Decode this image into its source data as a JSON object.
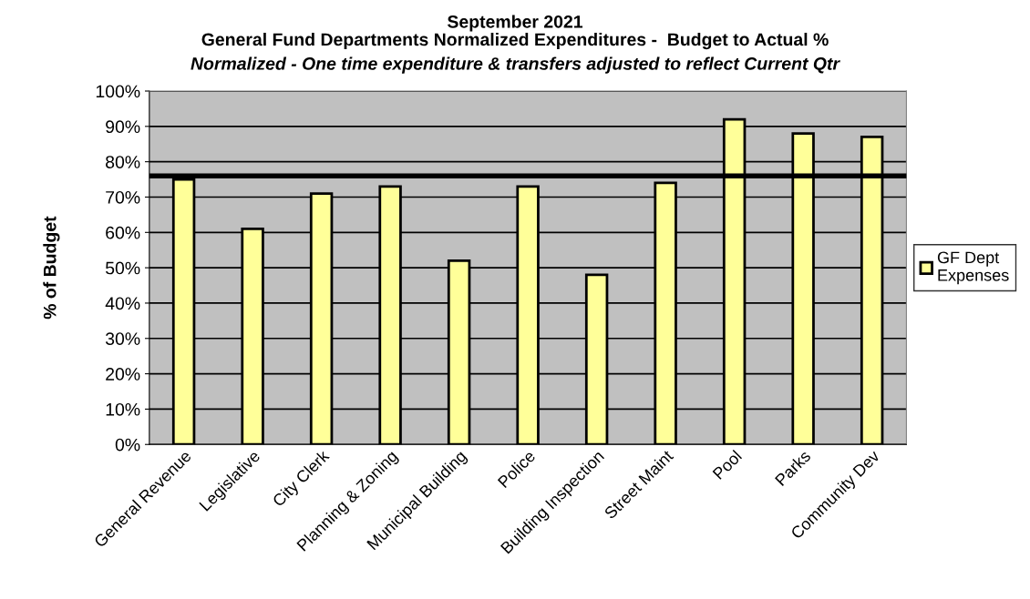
{
  "chart_data": {
    "type": "bar",
    "title": "September 2021\nGeneral Fund Departments Normalized Expenditures -  Budget to Actual %",
    "subtitle": "Normalized - One time expenditure & transfers adjusted to reflect Current Qtr",
    "ylabel": "% of Budget",
    "categories": [
      "General Revenue",
      "Legislative",
      "City Clerk",
      "Planning & Zoning",
      "Municipal Building",
      "Police",
      "Building Inspection",
      "Street Maint",
      "Pool",
      "Parks",
      "Community Dev"
    ],
    "series": [
      {
        "name": "GF Dept\nExpenses",
        "color": "#ffff99",
        "values": [
          75,
          61,
          71,
          73,
          52,
          73,
          48,
          74,
          92,
          88,
          87
        ]
      }
    ],
    "ylim": [
      0,
      100
    ],
    "yticks": [
      {
        "value": 0,
        "label": "0%"
      },
      {
        "value": 10,
        "label": "10%"
      },
      {
        "value": 20,
        "label": "20%"
      },
      {
        "value": 30,
        "label": "30%"
      },
      {
        "value": 40,
        "label": "40%"
      },
      {
        "value": 50,
        "label": "50%"
      },
      {
        "value": 60,
        "label": "60%"
      },
      {
        "value": 70,
        "label": "70%"
      },
      {
        "value": 80,
        "label": "80%"
      },
      {
        "value": 90,
        "label": "90%"
      },
      {
        "value": 100,
        "label": "100%"
      }
    ],
    "ref_lines": [
      {
        "axis": "y",
        "value": 76,
        "color": "#000000"
      }
    ],
    "grid": "y",
    "legend": "right"
  }
}
